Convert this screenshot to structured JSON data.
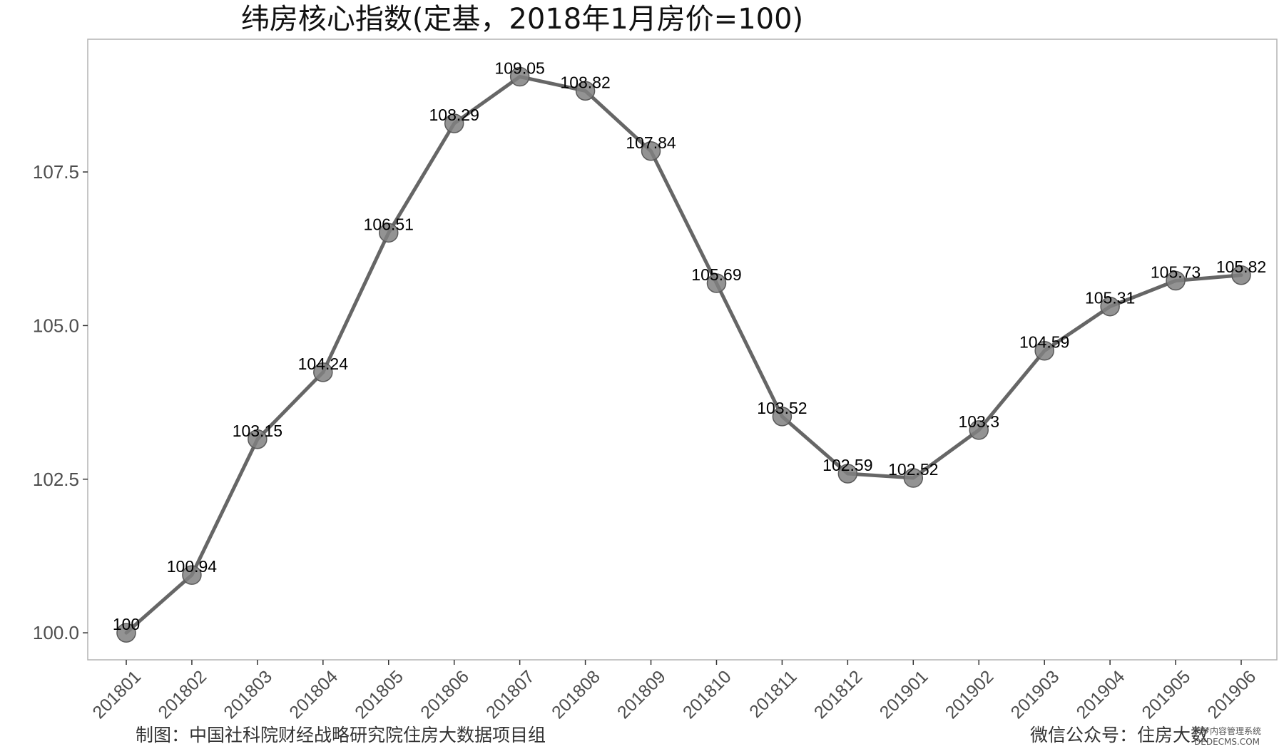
{
  "chart_data": {
    "type": "line",
    "title": "纬房核心指数(定基，2018年1月房价=100)",
    "xlabel": "",
    "ylabel": "",
    "categories": [
      "201801",
      "201802",
      "201803",
      "201804",
      "201805",
      "201806",
      "201807",
      "201808",
      "201809",
      "201810",
      "201811",
      "201812",
      "201901",
      "201902",
      "201903",
      "201904",
      "201905",
      "201906"
    ],
    "values": [
      100,
      100.94,
      103.15,
      104.24,
      106.51,
      108.29,
      109.05,
      108.82,
      107.84,
      105.69,
      103.52,
      102.59,
      102.52,
      103.3,
      104.59,
      105.31,
      105.73,
      105.82
    ],
    "data_labels": [
      "100",
      "100.94",
      "103.15",
      "104.24",
      "106.51",
      "108.29",
      "109.05",
      "108.82",
      "107.84",
      "105.69",
      "103.52",
      "102.59",
      "102.52",
      "103.3",
      "104.59",
      "105.31",
      "105.73",
      "105.82"
    ],
    "yticks": [
      100.0,
      102.5,
      105.0,
      107.5
    ],
    "ytick_labels": [
      "100.0",
      "102.5",
      "105.0",
      "107.5"
    ],
    "ylim": [
      99.56,
      109.66
    ],
    "grid": false,
    "line_color": "#666666",
    "marker_color": "#808080"
  },
  "footer": {
    "left": "制图：中国社科院财经战略研究院住房大数据项目组",
    "right": "微信公众号：住房大数",
    "watermark_line1": "织梦内容管理系统",
    "watermark_line2": "DEDECMS.COM"
  }
}
